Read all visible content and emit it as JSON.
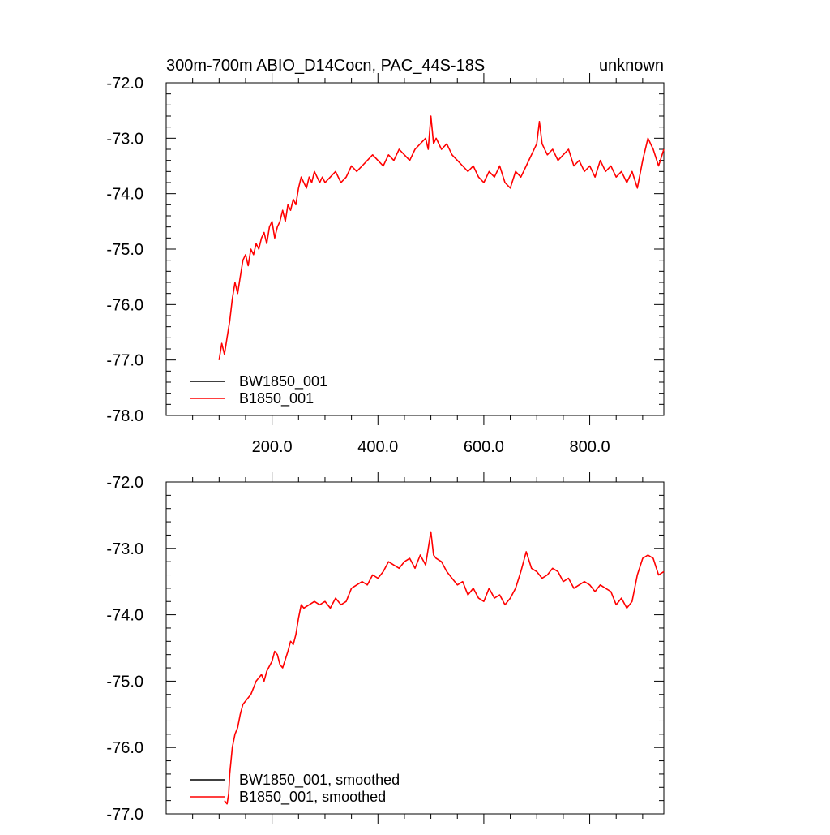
{
  "chart_data": [
    {
      "type": "line",
      "title_left": "300m-700m ABIO_D14Cocn, PAC_44S-18S",
      "title_right": "unknown",
      "xlabel": "",
      "ylabel": "",
      "xlim": [
        0,
        940
      ],
      "ylim": [
        -78.0,
        -72.0
      ],
      "x_ticks": [
        200,
        400,
        600,
        800
      ],
      "x_tick_labels": [
        "200.0",
        "400.0",
        "600.0",
        "800.0"
      ],
      "y_ticks": [
        -72,
        -73,
        -74,
        -75,
        -76,
        -77,
        -78
      ],
      "y_tick_labels": [
        "-72.0",
        "-73.0",
        "-74.0",
        "-75.0",
        "-76.0",
        "-77.0",
        "-78.0"
      ],
      "legend": {
        "position": "bottom-left",
        "entries": [
          "BW1850_001",
          "B1850_001"
        ]
      },
      "legend_colors": [
        "#000000",
        "#ff0000"
      ],
      "series": [
        {
          "name": "BW1850_001",
          "color": "#000000",
          "x": [],
          "y": []
        },
        {
          "name": "B1850_001",
          "color": "#ff0000",
          "x": [
            100,
            105,
            110,
            115,
            120,
            125,
            130,
            135,
            140,
            145,
            150,
            155,
            160,
            165,
            170,
            175,
            180,
            185,
            190,
            195,
            200,
            205,
            210,
            215,
            220,
            225,
            230,
            235,
            240,
            245,
            250,
            255,
            260,
            265,
            270,
            275,
            280,
            285,
            290,
            295,
            300,
            310,
            320,
            330,
            340,
            350,
            360,
            370,
            380,
            390,
            400,
            410,
            420,
            430,
            440,
            450,
            460,
            470,
            480,
            490,
            495,
            500,
            505,
            510,
            520,
            530,
            540,
            550,
            560,
            570,
            580,
            590,
            600,
            610,
            620,
            630,
            640,
            650,
            660,
            670,
            680,
            690,
            700,
            705,
            710,
            720,
            730,
            740,
            750,
            760,
            770,
            780,
            790,
            800,
            810,
            820,
            830,
            840,
            850,
            860,
            870,
            880,
            890,
            900,
            910,
            920,
            930,
            940
          ],
          "y": [
            -77.0,
            -76.7,
            -76.9,
            -76.6,
            -76.3,
            -75.9,
            -75.6,
            -75.8,
            -75.5,
            -75.2,
            -75.1,
            -75.3,
            -75.0,
            -75.1,
            -74.9,
            -75.0,
            -74.8,
            -74.7,
            -74.9,
            -74.6,
            -74.5,
            -74.8,
            -74.6,
            -74.5,
            -74.3,
            -74.5,
            -74.2,
            -74.3,
            -74.1,
            -74.2,
            -73.9,
            -73.7,
            -73.8,
            -73.9,
            -73.7,
            -73.8,
            -73.6,
            -73.7,
            -73.8,
            -73.7,
            -73.8,
            -73.7,
            -73.6,
            -73.8,
            -73.7,
            -73.5,
            -73.6,
            -73.5,
            -73.4,
            -73.3,
            -73.4,
            -73.5,
            -73.3,
            -73.4,
            -73.2,
            -73.3,
            -73.4,
            -73.2,
            -73.1,
            -73.0,
            -73.2,
            -72.6,
            -73.1,
            -73.0,
            -73.2,
            -73.1,
            -73.3,
            -73.4,
            -73.5,
            -73.6,
            -73.5,
            -73.7,
            -73.8,
            -73.6,
            -73.7,
            -73.5,
            -73.8,
            -73.9,
            -73.6,
            -73.7,
            -73.5,
            -73.3,
            -73.1,
            -72.7,
            -73.1,
            -73.3,
            -73.2,
            -73.4,
            -73.3,
            -73.2,
            -73.5,
            -73.4,
            -73.6,
            -73.5,
            -73.7,
            -73.4,
            -73.6,
            -73.5,
            -73.7,
            -73.6,
            -73.8,
            -73.6,
            -73.9,
            -73.4,
            -73.0,
            -73.2,
            -73.5,
            -73.2
          ]
        }
      ]
    },
    {
      "type": "line",
      "title_left": "",
      "title_right": "",
      "xlabel": "",
      "ylabel": "",
      "xlim": [
        0,
        940
      ],
      "ylim": [
        -77.0,
        -72.0
      ],
      "x_ticks": [
        200,
        400,
        600,
        800
      ],
      "x_tick_labels": [],
      "y_ticks": [
        -72,
        -73,
        -74,
        -75,
        -76,
        -77
      ],
      "y_tick_labels": [
        "-72.0",
        "-73.0",
        "-74.0",
        "-75.0",
        "-76.0",
        "-77.0"
      ],
      "legend": {
        "position": "bottom-left",
        "entries": [
          "BW1850_001, smoothed",
          "B1850_001, smoothed"
        ]
      },
      "legend_colors": [
        "#000000",
        "#ff0000"
      ],
      "series": [
        {
          "name": "BW1850_001, smoothed",
          "color": "#000000",
          "x": [],
          "y": []
        },
        {
          "name": "B1850_001, smoothed",
          "color": "#ff0000",
          "x": [
            110,
            115,
            118,
            120,
            125,
            130,
            135,
            140,
            145,
            150,
            155,
            160,
            165,
            170,
            180,
            185,
            190,
            200,
            205,
            210,
            215,
            220,
            230,
            235,
            240,
            245,
            250,
            255,
            260,
            270,
            280,
            290,
            300,
            310,
            320,
            330,
            340,
            350,
            360,
            370,
            380,
            390,
            400,
            410,
            420,
            430,
            440,
            450,
            460,
            470,
            480,
            490,
            500,
            505,
            510,
            520,
            530,
            540,
            550,
            560,
            570,
            580,
            590,
            600,
            610,
            620,
            630,
            640,
            650,
            660,
            670,
            680,
            690,
            700,
            710,
            720,
            730,
            740,
            750,
            760,
            770,
            780,
            790,
            800,
            810,
            820,
            830,
            840,
            850,
            860,
            870,
            880,
            890,
            900,
            910,
            920,
            930,
            940
          ],
          "y": [
            -76.8,
            -76.85,
            -76.7,
            -76.4,
            -76.0,
            -75.8,
            -75.7,
            -75.5,
            -75.35,
            -75.3,
            -75.25,
            -75.2,
            -75.1,
            -75.0,
            -74.9,
            -75.0,
            -74.85,
            -74.7,
            -74.55,
            -74.6,
            -74.75,
            -74.8,
            -74.55,
            -74.4,
            -74.45,
            -74.3,
            -74.05,
            -73.85,
            -73.9,
            -73.85,
            -73.8,
            -73.85,
            -73.8,
            -73.9,
            -73.75,
            -73.85,
            -73.8,
            -73.6,
            -73.55,
            -73.5,
            -73.55,
            -73.4,
            -73.45,
            -73.35,
            -73.2,
            -73.25,
            -73.3,
            -73.2,
            -73.15,
            -73.3,
            -73.1,
            -73.25,
            -72.75,
            -73.1,
            -73.15,
            -73.2,
            -73.35,
            -73.45,
            -73.55,
            -73.5,
            -73.7,
            -73.6,
            -73.75,
            -73.8,
            -73.6,
            -73.75,
            -73.7,
            -73.85,
            -73.75,
            -73.6,
            -73.35,
            -73.05,
            -73.3,
            -73.35,
            -73.45,
            -73.4,
            -73.3,
            -73.35,
            -73.5,
            -73.45,
            -73.6,
            -73.55,
            -73.5,
            -73.55,
            -73.65,
            -73.55,
            -73.6,
            -73.65,
            -73.85,
            -73.75,
            -73.9,
            -73.8,
            -73.4,
            -73.15,
            -73.1,
            -73.15,
            -73.4,
            -73.35
          ]
        }
      ]
    }
  ]
}
